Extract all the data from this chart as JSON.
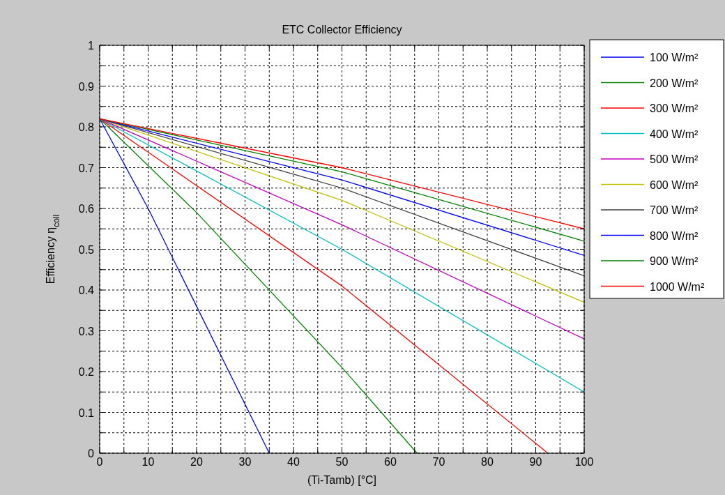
{
  "chart_data": {
    "type": "line",
    "title": "ETC Collector Efficiency",
    "xlabel": "(Ti-Tamb) [°C]",
    "ylabel": "Efficiency η$_{coll}$",
    "xlim": [
      0,
      100
    ],
    "ylim": [
      0,
      1
    ],
    "xticks": [
      0,
      {
        "value": 5,
        "label": null
      },
      10,
      {
        "value": 15,
        "label": null
      },
      20,
      {
        "value": 25,
        "label": null
      },
      30,
      {
        "value": 35,
        "label": null
      },
      40,
      {
        "value": 45,
        "label": null
      },
      50,
      {
        "value": 55,
        "label": null
      },
      60,
      {
        "value": 65,
        "label": null
      },
      70,
      {
        "value": 75,
        "label": null
      },
      80,
      {
        "value": 85,
        "label": null
      },
      90,
      {
        "value": 95,
        "label": null
      },
      100
    ],
    "yticks": [
      0,
      {
        "value": 0.05,
        "label": null
      },
      0.1,
      {
        "value": 0.15,
        "label": null
      },
      0.2,
      {
        "value": 0.25,
        "label": null
      },
      0.3,
      {
        "value": 0.35,
        "label": null
      },
      0.4,
      {
        "value": 0.45,
        "label": null
      },
      0.5,
      {
        "value": 0.55,
        "label": null
      },
      0.6,
      {
        "value": 0.65,
        "label": null
      },
      0.7,
      {
        "value": 0.75,
        "label": null
      },
      0.8,
      {
        "value": 0.85,
        "label": null
      },
      0.9,
      {
        "value": 0.95,
        "label": null
      },
      1
    ],
    "grid": true,
    "legend": "right",
    "line_style": "solid",
    "marker": "none",
    "series": [
      {
        "name": "100 W/m²",
        "color": "#0000ff",
        "x": [
          0,
          10,
          20,
          35
        ],
        "values": [
          0.82,
          0.6,
          0.36,
          0
        ]
      },
      {
        "name": "200 W/m²",
        "color": "#008000",
        "x": [
          0,
          20,
          50,
          65.5
        ],
        "values": [
          0.82,
          0.59,
          0.21,
          0
        ]
      },
      {
        "name": "300 W/m²",
        "color": "#ff0000",
        "x": [
          0,
          50,
          92.5
        ],
        "values": [
          0.82,
          0.41,
          0
        ]
      },
      {
        "name": "400 W/m²",
        "color": "#00bfbf",
        "x": [
          0,
          50,
          100
        ],
        "values": [
          0.82,
          0.5,
          0.15
        ]
      },
      {
        "name": "500 W/m²",
        "color": "#bf00bf",
        "x": [
          0,
          50,
          100
        ],
        "values": [
          0.82,
          0.56,
          0.28
        ]
      },
      {
        "name": "600 W/m²",
        "color": "#bfbf00",
        "x": [
          0,
          50,
          100
        ],
        "values": [
          0.82,
          0.62,
          0.37
        ]
      },
      {
        "name": "700 W/m²",
        "color": "#404040",
        "x": [
          0,
          50,
          100
        ],
        "values": [
          0.82,
          0.65,
          0.435
        ]
      },
      {
        "name": "800 W/m²",
        "color": "#0000ff",
        "x": [
          0,
          50,
          100
        ],
        "values": [
          0.82,
          0.67,
          0.485
        ]
      },
      {
        "name": "900 W/m²",
        "color": "#008000",
        "x": [
          0,
          50,
          100
        ],
        "values": [
          0.82,
          0.69,
          0.52
        ]
      },
      {
        "name": "1000 W/m²",
        "color": "#ff0000",
        "x": [
          0,
          50,
          100
        ],
        "values": [
          0.82,
          0.7,
          0.55
        ]
      }
    ]
  }
}
